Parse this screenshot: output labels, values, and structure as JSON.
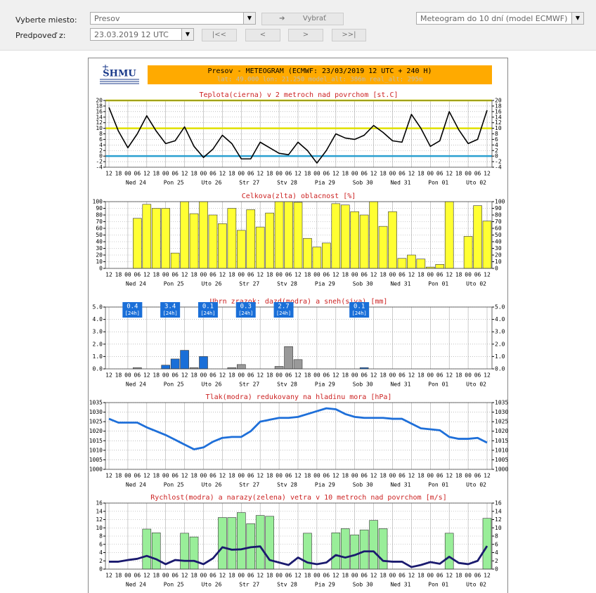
{
  "form": {
    "place_label": "Vyberte miesto:",
    "from_label": "Predpoveď z:",
    "place": "Presov",
    "select_button": "Vybrať",
    "forecast_from": "23.03.2019 12 UTC",
    "nav": [
      "|<<",
      "<",
      ">",
      ">>|"
    ],
    "product": "Meteogram do 10 dní (model ECMWF)"
  },
  "header": {
    "logo": "SHMU",
    "title": "Presov - METEOGRAM (ECMWF: 23/03/2019 12 UTC + 240 H)",
    "subtitle": "lat: 49.000  lon: 21.250  model_alt: 386m  real_alt: 295m"
  },
  "chart_data": [
    {
      "type": "line",
      "title": "Teplota(cierna) v 2 metroch nad povrchom [st.C]",
      "categories": [
        "12",
        "18",
        "00",
        "06",
        "12",
        "18",
        "00",
        "06",
        "12",
        "18",
        "00",
        "06",
        "12",
        "18",
        "00",
        "06",
        "12",
        "18",
        "00",
        "06",
        "12",
        "18",
        "00",
        "06",
        "12",
        "18",
        "00",
        "06",
        "12",
        "18",
        "00",
        "06",
        "12",
        "18",
        "00",
        "06",
        "12",
        "18",
        "00",
        "06",
        "12"
      ],
      "day_labels": [
        "Ned 24",
        "Pon 25",
        "Uto 26",
        "Str 27",
        "Stv 28",
        "Pia 29",
        "Sob 30",
        "Ned 31",
        "Pon 01",
        "Uto 02"
      ],
      "ylim": [
        -4,
        20
      ],
      "yticks": [
        -4,
        -2,
        0,
        2,
        4,
        6,
        8,
        10,
        12,
        14,
        16,
        18,
        20
      ],
      "grid": true,
      "reference_lines": [
        {
          "value": 0,
          "color": "#2aa0d0"
        },
        {
          "value": 10,
          "color": "#e0e000"
        },
        {
          "value": 20,
          "color": "#e0e000"
        }
      ],
      "series": [
        {
          "color": "#000000",
          "values": [
            17.5,
            9,
            3,
            8,
            14.5,
            9,
            4.5,
            5.5,
            10.5,
            3.5,
            -0.5,
            2.5,
            7.5,
            4.5,
            -1,
            -1,
            5,
            3,
            1,
            0.5,
            5,
            2,
            -2.5,
            2,
            8,
            6.5,
            6,
            7.5,
            11,
            8.5,
            5.5,
            5,
            15,
            10,
            3.5,
            5.5,
            16,
            9.5,
            4.5,
            6,
            16.5
          ]
        }
      ]
    },
    {
      "type": "bar",
      "title": "Celkova(zlta) oblacnost [%]",
      "categories": [
        "12",
        "18",
        "00",
        "06",
        "12",
        "18",
        "00",
        "06",
        "12",
        "18",
        "00",
        "06",
        "12",
        "18",
        "00",
        "06",
        "12",
        "18",
        "00",
        "06",
        "12",
        "18",
        "00",
        "06",
        "12",
        "18",
        "00",
        "06",
        "12",
        "18",
        "00",
        "06",
        "12",
        "18",
        "00",
        "06",
        "12",
        "18",
        "00",
        "06",
        "12"
      ],
      "day_labels": [
        "Ned 24",
        "Pon 25",
        "Uto 26",
        "Str 27",
        "Stv 28",
        "Pia 29",
        "Sob 30",
        "Ned 31",
        "Pon 01",
        "Uto 02"
      ],
      "ylim": [
        0,
        100
      ],
      "yticks": [
        0,
        10,
        20,
        30,
        40,
        50,
        60,
        70,
        80,
        90,
        100
      ],
      "grid": true,
      "series": [
        {
          "color": "#ffff33",
          "values": [
            null,
            null,
            null,
            75,
            96,
            90,
            90,
            23,
            100,
            82,
            100,
            80,
            67,
            90,
            57,
            88,
            62,
            83,
            100,
            100,
            99,
            45,
            32,
            38,
            97,
            95,
            85,
            80,
            100,
            63,
            85,
            15,
            20,
            14,
            2,
            6,
            100,
            0,
            48,
            94,
            71
          ]
        }
      ]
    },
    {
      "type": "bar",
      "title": "Uhrn zrazok: dazd(modra) a sneh(siva) [mm]",
      "categories": [
        "12",
        "18",
        "00",
        "06",
        "12",
        "18",
        "00",
        "06",
        "12",
        "18",
        "00",
        "06",
        "12",
        "18",
        "00",
        "06",
        "12",
        "18",
        "00",
        "06",
        "12",
        "18",
        "00",
        "06",
        "12",
        "18",
        "00",
        "06",
        "12",
        "18",
        "00",
        "06",
        "12",
        "18",
        "00",
        "06",
        "12",
        "18",
        "00",
        "06",
        "12"
      ],
      "day_labels": [
        "Ned 24",
        "Pon 25",
        "Uto 26",
        "Str 27",
        "Stv 28",
        "Pia 29",
        "Sob 30",
        "Ned 31",
        "Pon 01",
        "Uto 02"
      ],
      "ylim": [
        0,
        5
      ],
      "yticks": [
        {
          "value": 0,
          "label": "0.0"
        },
        {
          "value": 1,
          "label": "1.0"
        },
        {
          "value": 2,
          "label": "2.0"
        },
        {
          "value": 3,
          "label": "3.0"
        },
        {
          "value": 4,
          "label": "4.0"
        },
        {
          "value": 5,
          "label": "5.0"
        }
      ],
      "grid": true,
      "daily_total_unit": "[24h]",
      "daily_totals": [
        0.4,
        3.4,
        0.1,
        0.3,
        2.7,
        null,
        0.1,
        null,
        null,
        null
      ],
      "daily_total_color": "#1a6fd8",
      "series": [
        {
          "color": "#1a6fd8",
          "values": [
            null,
            null,
            null,
            null,
            null,
            null,
            0.3,
            0.8,
            1.5,
            null,
            1,
            null,
            null,
            null,
            null,
            null,
            null,
            null,
            null,
            null,
            null,
            null,
            null,
            null,
            null,
            null,
            null,
            0.1,
            null,
            null,
            null,
            null,
            null,
            null,
            null,
            null,
            null,
            null,
            null,
            null,
            null
          ]
        },
        {
          "color": "#999999",
          "values": [
            null,
            null,
            null,
            0.1,
            null,
            null,
            null,
            null,
            null,
            0.1,
            null,
            null,
            null,
            0.1,
            0.35,
            null,
            null,
            null,
            0.2,
            1.8,
            0.75,
            null,
            null,
            null,
            null,
            null,
            null,
            null,
            null,
            null,
            null,
            null,
            null,
            null,
            null,
            null,
            null,
            null,
            null,
            null,
            null
          ]
        }
      ]
    },
    {
      "type": "line",
      "title": "Tlak(modra) redukovany na hladinu mora [hPa]",
      "categories": [
        "12",
        "18",
        "00",
        "06",
        "12",
        "18",
        "00",
        "06",
        "12",
        "18",
        "00",
        "06",
        "12",
        "18",
        "00",
        "06",
        "12",
        "18",
        "00",
        "06",
        "12",
        "18",
        "00",
        "06",
        "12",
        "18",
        "00",
        "06",
        "12",
        "18",
        "00",
        "06",
        "12",
        "18",
        "00",
        "06",
        "12",
        "18",
        "00",
        "06",
        "12"
      ],
      "day_labels": [
        "Ned 24",
        "Pon 25",
        "Uto 26",
        "Str 27",
        "Stv 28",
        "Pia 29",
        "Sob 30",
        "Ned 31",
        "Pon 01",
        "Uto 02"
      ],
      "ylim": [
        1000,
        1035
      ],
      "yticks": [
        1000,
        1005,
        1010,
        1015,
        1020,
        1025,
        1030,
        1035
      ],
      "grid": true,
      "series": [
        {
          "color": "#1e6fd9",
          "values": [
            1026.5,
            1024.5,
            1024.5,
            1024.5,
            1022,
            1020,
            1018,
            1015.5,
            1013,
            1010.5,
            1011.5,
            1014.5,
            1016.5,
            1017,
            1017,
            1020,
            1025,
            1026,
            1027,
            1027,
            1027.5,
            1029,
            1030.5,
            1032,
            1031.5,
            1029,
            1027.5,
            1027,
            1027,
            1027,
            1026.5,
            1026.5,
            1024,
            1021.5,
            1021,
            1020.5,
            1017,
            1016,
            1016,
            1016.5,
            1014
          ]
        }
      ]
    },
    {
      "type": "combo",
      "title": "Rychlost(modra) a narazy(zelena) vetra v 10 metroch nad povrchom [m/s]",
      "categories": [
        "12",
        "18",
        "00",
        "06",
        "12",
        "18",
        "00",
        "06",
        "12",
        "18",
        "00",
        "06",
        "12",
        "18",
        "00",
        "06",
        "12",
        "18",
        "00",
        "06",
        "12",
        "18",
        "00",
        "06",
        "12",
        "18",
        "00",
        "06",
        "12",
        "18",
        "00",
        "06",
        "12",
        "18",
        "00",
        "06",
        "12",
        "18",
        "00",
        "06",
        "12"
      ],
      "day_labels": [
        "Ned 24",
        "Pon 25",
        "Uto 26",
        "Str 27",
        "Stv 28",
        "Pia 29",
        "Sob 30",
        "Ned 31",
        "Pon 01",
        "Uto 02"
      ],
      "ylim": [
        0,
        16
      ],
      "yticks": [
        0,
        2,
        4,
        6,
        8,
        10,
        12,
        14,
        16
      ],
      "grid": true,
      "series": [
        {
          "type": "bar",
          "color": "#99ee99",
          "values": [
            null,
            null,
            null,
            null,
            9.7,
            8.8,
            null,
            null,
            8.7,
            7.8,
            null,
            null,
            12.5,
            12.5,
            13.7,
            11,
            13,
            12.8,
            null,
            null,
            null,
            8.7,
            null,
            null,
            8.8,
            9.8,
            8.3,
            9.5,
            11.8,
            9.8,
            null,
            null,
            null,
            null,
            null,
            null,
            8.7,
            null,
            null,
            null,
            12.3
          ]
        },
        {
          "type": "line",
          "color": "#1a1a6e",
          "values": [
            1.8,
            1.8,
            2.2,
            2.5,
            3.2,
            2.4,
            1.2,
            2.2,
            2,
            2,
            1.2,
            2.6,
            5.3,
            4.7,
            4.8,
            5.3,
            5.5,
            2.2,
            1.6,
            1,
            2.8,
            1.6,
            1.2,
            1.6,
            3.4,
            2.8,
            3.4,
            4.3,
            4.3,
            2,
            1.8,
            1.8,
            0.5,
            1,
            1.7,
            1.3,
            3,
            1.5,
            1.2,
            2,
            5.6
          ]
        }
      ]
    }
  ]
}
